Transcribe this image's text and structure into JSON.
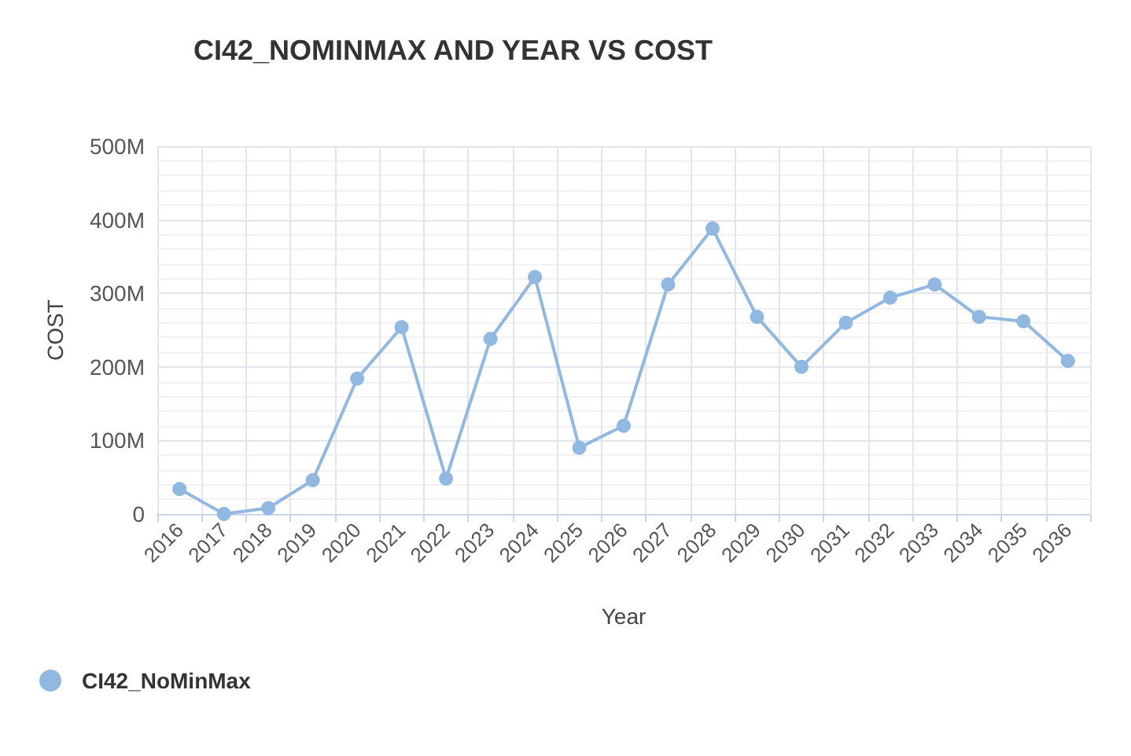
{
  "chart_data": {
    "type": "line",
    "title": "CI42_NOMINMAX AND YEAR VS COST",
    "xlabel": "Year",
    "ylabel": "COST",
    "categories": [
      "2016",
      "2017",
      "2018",
      "2019",
      "2020",
      "2021",
      "2022",
      "2023",
      "2024",
      "2025",
      "2026",
      "2027",
      "2028",
      "2029",
      "2030",
      "2031",
      "2032",
      "2033",
      "2034",
      "2035",
      "2036"
    ],
    "series": [
      {
        "name": "CI42_NoMinMax",
        "color": "#90b8e0",
        "values": [
          34000000,
          0,
          8000000,
          46000000,
          184000000,
          254000000,
          48000000,
          238000000,
          322000000,
          90000000,
          120000000,
          312000000,
          388000000,
          268000000,
          200000000,
          260000000,
          294000000,
          312000000,
          268000000,
          262000000,
          208000000
        ]
      }
    ],
    "ylim": [
      0,
      500000000
    ],
    "yticks": [
      {
        "value": 0,
        "label": "0"
      },
      {
        "value": 100000000,
        "label": "100M"
      },
      {
        "value": 200000000,
        "label": "200M"
      },
      {
        "value": 300000000,
        "label": "300M"
      },
      {
        "value": 400000000,
        "label": "400M"
      },
      {
        "value": 500000000,
        "label": "500M"
      }
    ],
    "grid": true,
    "legend": "bottom left",
    "marker": "circle",
    "line_style": "solid"
  }
}
